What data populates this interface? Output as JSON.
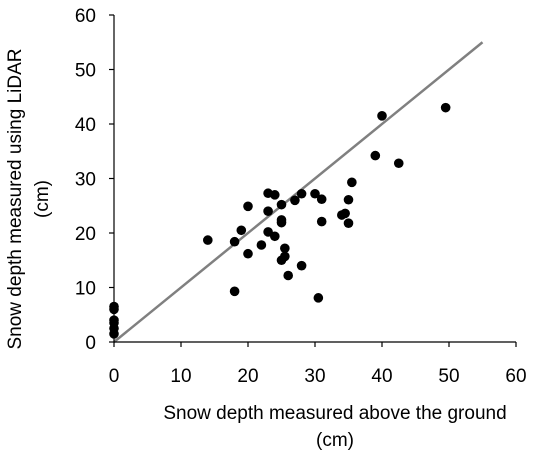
{
  "chart_data": {
    "type": "scatter",
    "xlabel": [
      "Snow depth measured above the ground",
      "(cm)"
    ],
    "ylabel": [
      "Snow depth measured using  LiDAR",
      "(cm)"
    ],
    "xlim": [
      0,
      60
    ],
    "ylim": [
      0,
      60
    ],
    "xticks": [
      0,
      10,
      20,
      30,
      40,
      50,
      60
    ],
    "yticks": [
      0,
      10,
      20,
      30,
      40,
      50,
      60
    ],
    "grid": false,
    "legend": "none",
    "reference_line": {
      "from": [
        0,
        0
      ],
      "to": [
        55,
        55
      ]
    },
    "points": [
      [
        0,
        1.5
      ],
      [
        0,
        2.5
      ],
      [
        0,
        3.5
      ],
      [
        0,
        4
      ],
      [
        0,
        6
      ],
      [
        0,
        6.5
      ],
      [
        14,
        18.7
      ],
      [
        18,
        9.3
      ],
      [
        18,
        18.4
      ],
      [
        19,
        20.5
      ],
      [
        20,
        16.2
      ],
      [
        20,
        24.9
      ],
      [
        22,
        17.8
      ],
      [
        23,
        20.2
      ],
      [
        23,
        27.3
      ],
      [
        23,
        24
      ],
      [
        24,
        19.4
      ],
      [
        24,
        27
      ],
      [
        25,
        21.9
      ],
      [
        25,
        22.4
      ],
      [
        25,
        25.2
      ],
      [
        25,
        15
      ],
      [
        25.5,
        17.2
      ],
      [
        25.5,
        15.7
      ],
      [
        26,
        12.2
      ],
      [
        27,
        26
      ],
      [
        28,
        14
      ],
      [
        28,
        27.2
      ],
      [
        30,
        27.2
      ],
      [
        30.5,
        8.1
      ],
      [
        31,
        26.2
      ],
      [
        31,
        22.1
      ],
      [
        34,
        23.3
      ],
      [
        34.5,
        23.6
      ],
      [
        35,
        21.8
      ],
      [
        35,
        26.1
      ],
      [
        35.5,
        29.3
      ],
      [
        39,
        34.2
      ],
      [
        40,
        41.5
      ],
      [
        42.5,
        32.8
      ],
      [
        49.5,
        43
      ]
    ],
    "colors": {
      "points": "#000000",
      "line": "#808080",
      "axis": "#000000"
    }
  }
}
